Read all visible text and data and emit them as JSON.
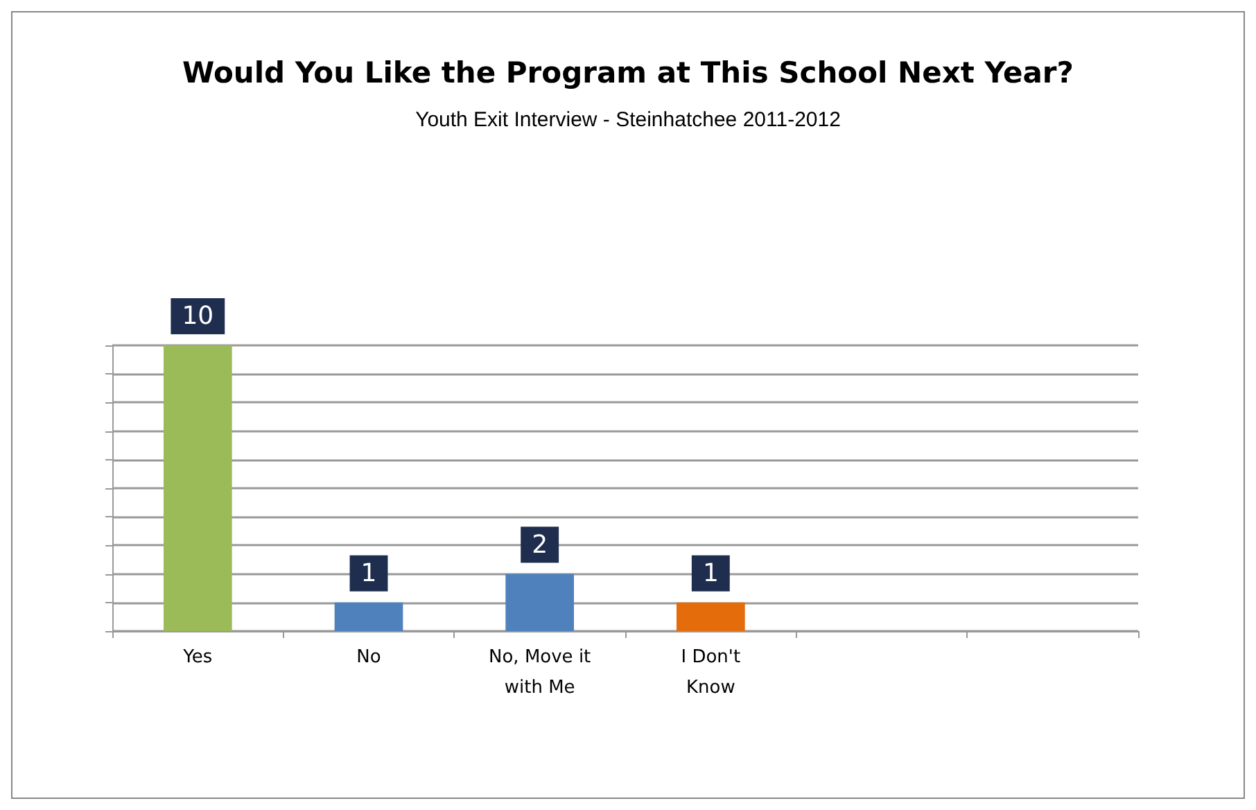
{
  "chart_data": {
    "type": "bar",
    "title": "Would You Like the Program at This School Next Year?",
    "subtitle": "Youth Exit Interview - Steinhatchee 2011-2012",
    "categories": [
      "Yes",
      "No",
      "No, Move it with Me",
      "I Don't Know",
      null,
      null
    ],
    "values": [
      10,
      1,
      2,
      1,
      null,
      null
    ],
    "colors": [
      "#9bbb59",
      "#4f81bd",
      "#4f81bd",
      "#e46c0a",
      null,
      null
    ],
    "ylim": [
      0,
      10
    ],
    "yticks": [
      {
        "value": 0,
        "label": null
      },
      {
        "value": 1,
        "label": null
      },
      {
        "value": 2,
        "label": null
      },
      {
        "value": 3,
        "label": null
      },
      {
        "value": 4,
        "label": null
      },
      {
        "value": 5,
        "label": null
      },
      {
        "value": 6,
        "label": null
      },
      {
        "value": 7,
        "label": null
      },
      {
        "value": 8,
        "label": null
      },
      {
        "value": 9,
        "label": null
      },
      {
        "value": 10,
        "label": null
      }
    ],
    "tick_labels": "x",
    "grid": "y",
    "data_labels": true
  }
}
